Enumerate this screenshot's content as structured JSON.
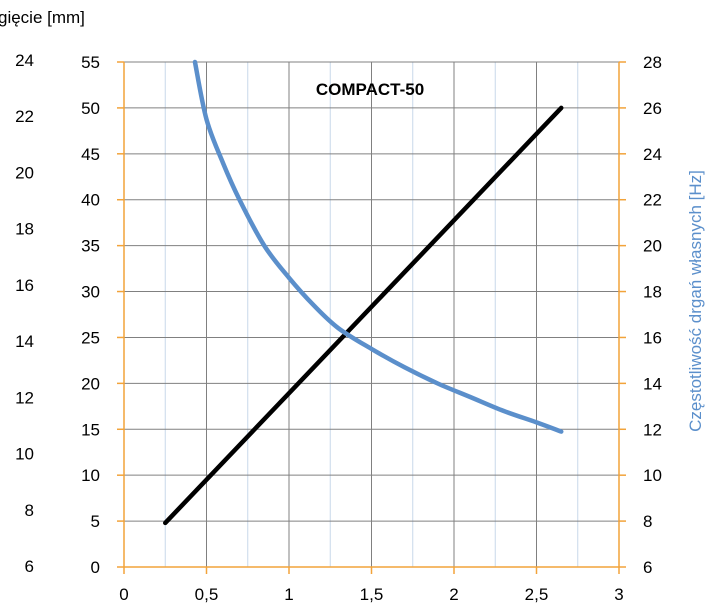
{
  "chart_data": {
    "type": "line",
    "title": "COMPACT-50",
    "ylabel_left": "gięcie [mm]",
    "ylabel_right": "Częstotliwość drgań własnych [Hz]",
    "xlim": [
      0,
      3
    ],
    "x_ticks": [
      "0",
      "0,5",
      "1",
      "1,5",
      "2",
      "2,5",
      "3"
    ],
    "y_primary": {
      "lim": [
        0,
        55
      ],
      "ticks": [
        "0",
        "5",
        "10",
        "15",
        "20",
        "25",
        "30",
        "35",
        "40",
        "45",
        "50",
        "55"
      ]
    },
    "y_outer_left_ticks": [
      "6",
      "8",
      "10",
      "12",
      "14",
      "16",
      "18",
      "20",
      "22",
      "24"
    ],
    "y_right": {
      "lim": [
        6,
        28
      ],
      "ticks": [
        "6",
        "8",
        "10",
        "12",
        "14",
        "16",
        "18",
        "20",
        "22",
        "24",
        "26",
        "28"
      ]
    },
    "grid": true,
    "colors": {
      "deflection": "#000000",
      "frequency": "#5B8FCB",
      "axis": "#F2A33A",
      "grid": "#808080",
      "minor_grid": "#C8D8EA"
    },
    "series": [
      {
        "axis": "primary",
        "x": [
          0.25,
          2.65
        ],
        "values": [
          4.8,
          50.0
        ]
      },
      {
        "axis": "right",
        "x": [
          0.43,
          0.5,
          0.6,
          0.7,
          0.85,
          1.0,
          1.15,
          1.3,
          1.5,
          1.7,
          1.9,
          2.1,
          2.3,
          2.5,
          2.65
        ],
        "values": [
          28.0,
          25.5,
          23.6,
          22.0,
          20.0,
          18.6,
          17.4,
          16.4,
          15.5,
          14.7,
          14.0,
          13.4,
          12.8,
          12.3,
          11.9
        ]
      }
    ]
  }
}
